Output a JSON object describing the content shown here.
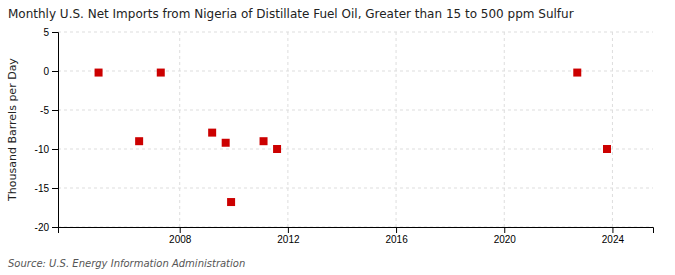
{
  "chart_data": {
    "type": "scatter",
    "title": "Monthly U.S. Net Imports from Nigeria of Distillate Fuel Oil, Greater than 15 to 500 ppm Sulfur",
    "ylabel": "Thousand Barrels per Day",
    "source": "Source: U.S. Energy Information Administration",
    "x": [
      2005.0,
      2006.5,
      2007.3,
      2009.2,
      2009.7,
      2009.9,
      2011.1,
      2011.6,
      2022.7,
      2023.8
    ],
    "values": [
      -0.2,
      -9.0,
      -0.2,
      -7.9,
      -9.2,
      -16.8,
      -9.0,
      -10.0,
      -0.2,
      -10.0
    ],
    "color": "#cc0000",
    "marker": "square",
    "xlim": [
      2003.5,
      2025.5
    ],
    "ylim": [
      -20,
      5
    ],
    "xticks": [
      2008,
      2012,
      2016,
      2020,
      2024
    ],
    "yticks": [
      -20,
      -15,
      -10,
      -5,
      0,
      5
    ],
    "grid": true
  }
}
